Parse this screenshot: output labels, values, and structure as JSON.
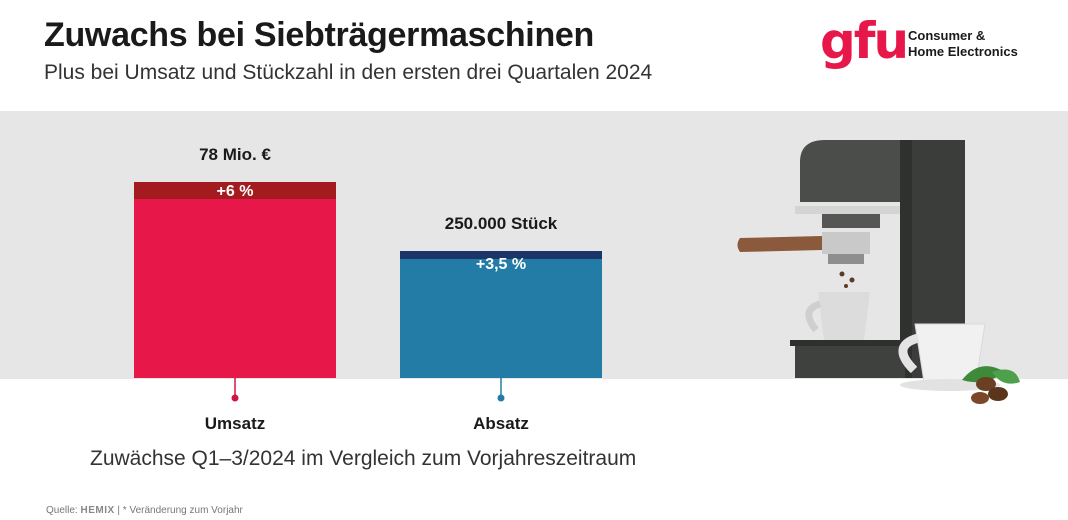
{
  "header": {
    "title": "Zuwachs bei Siebträgermaschinen",
    "subtitle": "Plus bei Umsatz und Stückzahl in den ersten drei Quartalen 2024"
  },
  "logo": {
    "mark": "gfu",
    "line1": "Consumer &",
    "line2": "Home Electronics"
  },
  "chart_data": {
    "type": "bar",
    "categories": [
      "Umsatz",
      "Absatz"
    ],
    "value_labels": [
      "78 Mio. €",
      "250.000 Stück"
    ],
    "change_labels": [
      "+6 %",
      "+3,5 %"
    ],
    "values": [
      78,
      250000
    ],
    "changes_percent": [
      6,
      3.5
    ],
    "colors": [
      "#e8174a",
      "#237ca6"
    ],
    "accent_colors": [
      "#a31a1f",
      "#1b3568"
    ],
    "stem_colors": [
      "#d01540",
      "#237ca6"
    ],
    "title": "",
    "xlabel": "",
    "ylabel": ""
  },
  "caption": "Zuwächse Q1–3/2024 im Vergleich zum Vorjahreszeitraum",
  "footer": {
    "source_label": "Quelle:",
    "source_brand": "HEMIX",
    "note": "| * Veränderung zum Vorjahr"
  }
}
